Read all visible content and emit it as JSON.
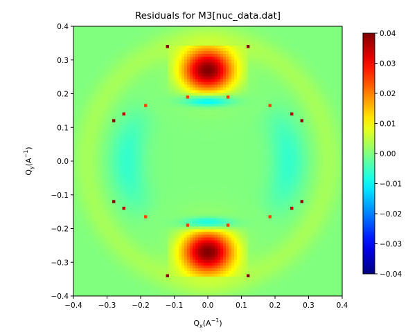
{
  "chart_data": {
    "type": "heatmap",
    "title": "Residuals for M3[nuc_data.dat]",
    "xlabel": {
      "base": "Q",
      "sub": "x",
      "unit_open": "(A",
      "unit_sup": "−1",
      "unit_close": ")"
    },
    "ylabel": {
      "base": "Q",
      "sub": "y",
      "unit_open": "(A",
      "unit_sup": "−1",
      "unit_close": ")"
    },
    "xlim": [
      -0.4,
      0.4
    ],
    "ylim": [
      -0.4,
      0.4
    ],
    "xticks": [
      -0.4,
      -0.3,
      -0.2,
      -0.1,
      0.0,
      0.1,
      0.2,
      0.3,
      0.4
    ],
    "xtick_labels": [
      "−0.4",
      "−0.3",
      "−0.2",
      "−0.1",
      "0.0",
      "0.1",
      "0.2",
      "0.3",
      "0.4"
    ],
    "yticks": [
      0.4,
      0.3,
      0.2,
      0.1,
      0.0,
      -0.1,
      -0.2,
      -0.3,
      -0.4
    ],
    "ytick_labels": [
      "0.4",
      "0.3",
      "0.2",
      "0.1",
      "0.0",
      "−0.1",
      "−0.2",
      "−0.3",
      "−0.4"
    ],
    "colormap": "jet",
    "clim": [
      -0.04,
      0.04
    ],
    "colorbar_ticks": [
      0.04,
      0.03,
      0.02,
      0.01,
      0.0,
      -0.01,
      -0.02,
      -0.03,
      -0.04
    ],
    "colorbar_tick_labels": [
      "0.04",
      "0.03",
      "0.02",
      "0.01",
      "0.00",
      "−0.01",
      "−0.02",
      "−0.03",
      "−0.04"
    ],
    "background_value": 0.0,
    "features": [
      {
        "name": "upper-lobe",
        "center": [
          0.0,
          0.27
        ],
        "peak": 0.04,
        "x_extent": [
          -0.12,
          0.12
        ],
        "y_extent": [
          0.18,
          0.34
        ]
      },
      {
        "name": "upper-lobe-negative-band",
        "center": [
          0.0,
          0.18
        ],
        "peak": -0.014
      },
      {
        "name": "lower-lobe",
        "center": [
          0.0,
          -0.27
        ],
        "peak": 0.04,
        "x_extent": [
          -0.12,
          0.12
        ],
        "y_extent": [
          -0.34,
          -0.18
        ]
      },
      {
        "name": "lower-lobe-negative-band",
        "center": [
          0.0,
          -0.185
        ],
        "peak": -0.014
      }
    ],
    "hot_pixels": [
      {
        "x": -0.12,
        "y": 0.34,
        "value": 0.04
      },
      {
        "x": 0.12,
        "y": 0.34,
        "value": 0.04
      },
      {
        "x": -0.12,
        "y": -0.34,
        "value": 0.04
      },
      {
        "x": 0.12,
        "y": -0.34,
        "value": 0.04
      },
      {
        "x": -0.06,
        "y": 0.19,
        "value": 0.025
      },
      {
        "x": 0.06,
        "y": 0.19,
        "value": 0.025
      },
      {
        "x": -0.06,
        "y": -0.19,
        "value": 0.025
      },
      {
        "x": 0.06,
        "y": -0.19,
        "value": 0.025
      },
      {
        "x": -0.28,
        "y": 0.12,
        "value": 0.04
      },
      {
        "x": -0.25,
        "y": 0.14,
        "value": 0.035
      },
      {
        "x": -0.185,
        "y": 0.165,
        "value": 0.025
      },
      {
        "x": 0.28,
        "y": 0.12,
        "value": 0.04
      },
      {
        "x": 0.25,
        "y": 0.14,
        "value": 0.035
      },
      {
        "x": 0.185,
        "y": 0.165,
        "value": 0.025
      },
      {
        "x": -0.28,
        "y": -0.12,
        "value": 0.04
      },
      {
        "x": -0.25,
        "y": -0.14,
        "value": 0.035
      },
      {
        "x": -0.185,
        "y": -0.165,
        "value": 0.025
      },
      {
        "x": 0.28,
        "y": -0.12,
        "value": 0.04
      },
      {
        "x": 0.25,
        "y": -0.14,
        "value": 0.035
      },
      {
        "x": 0.185,
        "y": -0.165,
        "value": 0.025
      }
    ]
  }
}
